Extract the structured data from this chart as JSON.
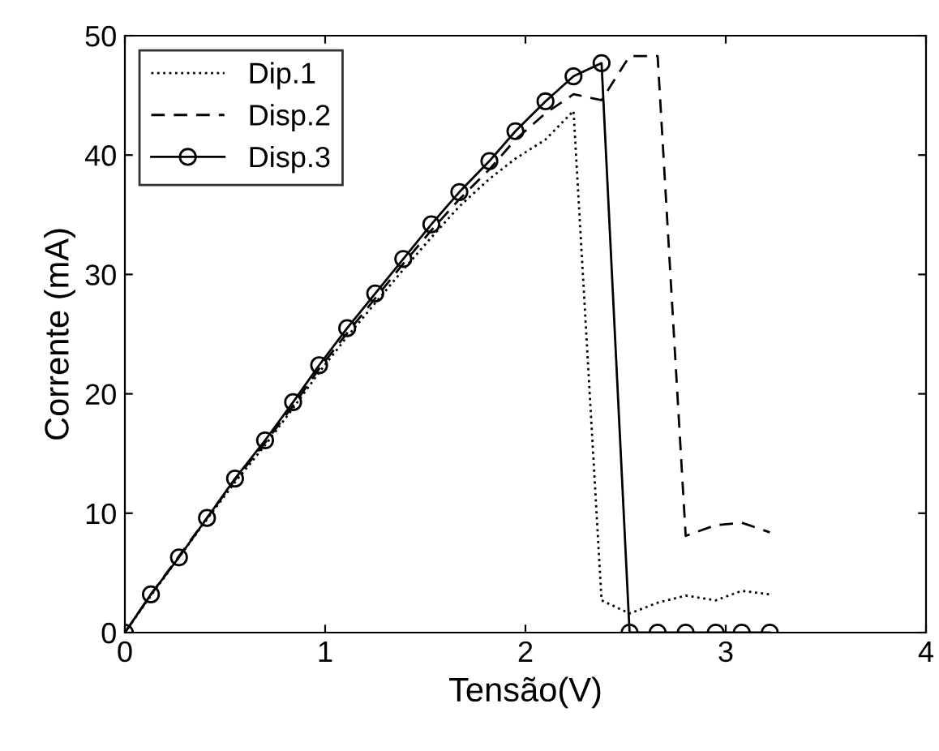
{
  "chart_data": {
    "type": "line",
    "xlabel": "Tensão(V)",
    "ylabel": "Corrente (mA)",
    "x": [
      0,
      0.13,
      0.27,
      0.41,
      0.55,
      0.7,
      0.84,
      0.97,
      1.11,
      1.25,
      1.39,
      1.53,
      1.67,
      1.82,
      1.95,
      2.1,
      2.24,
      2.38,
      2.52,
      2.66,
      2.8,
      2.95,
      3.08,
      3.22
    ],
    "series": [
      {
        "name": "Dip.1",
        "color": "#000000",
        "line_style": "dotted",
        "marker": "none",
        "values": [
          0,
          3.1,
          6.3,
          9.5,
          12.6,
          15.7,
          18.8,
          21.8,
          24.8,
          27.6,
          30.4,
          33.1,
          35.7,
          38.0,
          39.7,
          41.3,
          43.7,
          2.7,
          1.6,
          2.5,
          3.1,
          2.7,
          3.5,
          3.2
        ]
      },
      {
        "name": "Disp.2",
        "color": "#000000",
        "line_style": "dashed",
        "marker": "none",
        "values": [
          0,
          3.2,
          6.4,
          9.6,
          12.8,
          15.9,
          19.0,
          22.1,
          25.1,
          28.0,
          30.9,
          33.7,
          36.3,
          38.8,
          41.3,
          43.5,
          45.1,
          44.6,
          48.3,
          48.3,
          8.1,
          9.0,
          9.2,
          8.4
        ]
      },
      {
        "name": "Disp.3",
        "color": "#000000",
        "line_style": "solid",
        "marker": "circle",
        "values": [
          0,
          3.2,
          6.3,
          9.6,
          12.9,
          16.1,
          19.3,
          22.4,
          25.5,
          28.4,
          31.3,
          34.2,
          36.9,
          39.5,
          42.0,
          44.5,
          46.6,
          47.7,
          0,
          0,
          0,
          0,
          0,
          0
        ]
      }
    ],
    "xlim": [
      0,
      4
    ],
    "xticks": [
      0,
      1,
      2,
      3,
      4
    ],
    "ylim": [
      0,
      50
    ],
    "yticks": [
      0,
      10,
      20,
      30,
      40,
      50
    ],
    "grid": false,
    "legend": "top left"
  }
}
